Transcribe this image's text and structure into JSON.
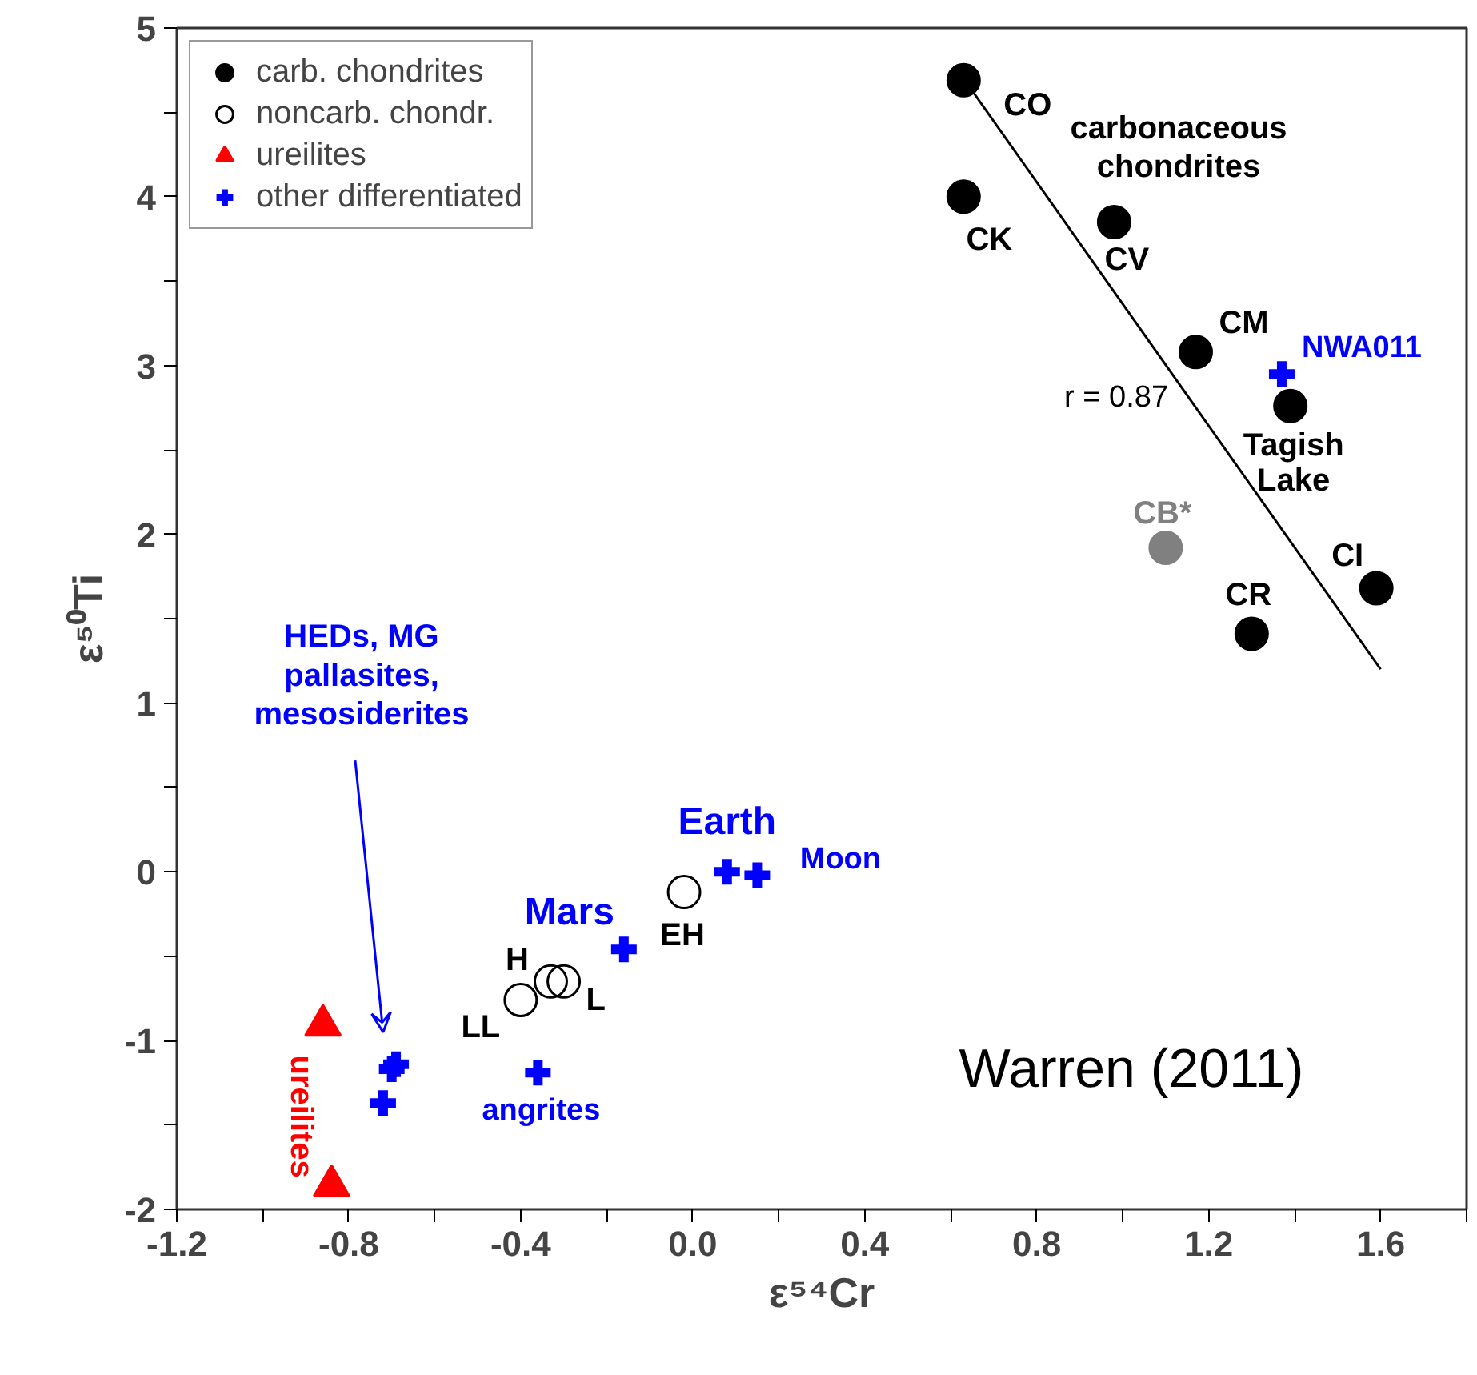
{
  "chart_data": {
    "type": "scatter",
    "xlabel": "ε⁵⁴Cr",
    "ylabel": "ε⁵⁰Ti",
    "xlim": [
      -1.2,
      1.8
    ],
    "ylim": [
      -2,
      5
    ],
    "xticks": [
      -1.2,
      {
        "value": -1.0,
        "label": null
      },
      -0.8,
      {
        "value": -0.6,
        "label": null
      },
      -0.4,
      {
        "value": -0.2,
        "label": null
      },
      {
        "value": 0,
        "label": "0.0"
      },
      {
        "value": 0.2,
        "label": null
      },
      0.4,
      {
        "value": 0.6,
        "label": null
      },
      0.8,
      {
        "value": 1.0,
        "label": null
      },
      1.2,
      {
        "value": 1.4,
        "label": null
      },
      1.6,
      {
        "value": 1.8,
        "label": null
      }
    ],
    "yticks": [
      -2,
      {
        "value": -1.5,
        "label": null
      },
      -1,
      {
        "value": -0.5,
        "label": null
      },
      0,
      {
        "value": 0.5,
        "label": null
      },
      1,
      {
        "value": 1.5,
        "label": null
      },
      2,
      {
        "value": 2.5,
        "label": null
      },
      3,
      {
        "value": 3.5,
        "label": null
      },
      4,
      {
        "value": 4.5,
        "label": null
      },
      5
    ],
    "grid": false,
    "legend": "top left",
    "series": [
      {
        "name": "carb. chondrites",
        "marker": "circle",
        "color": "#000000",
        "colors": [
          "#000000",
          "#000000",
          "#000000",
          "#000000",
          "#000000",
          "#000000",
          "#000000",
          "#808080"
        ],
        "x": [
          0.63,
          0.63,
          0.98,
          1.17,
          1.39,
          1.59,
          1.3,
          1.1
        ],
        "values": [
          4.69,
          4.0,
          3.85,
          3.08,
          2.76,
          1.68,
          1.41,
          1.92
        ],
        "value_labels": [
          "CO",
          "CK",
          "CV",
          "CM",
          "Tagish\nLake",
          "CI",
          "CR",
          "CB*"
        ]
      },
      {
        "name": "noncarb. chondr.",
        "marker": "circle",
        "color": "#000000",
        "x": [
          -0.02,
          -0.4,
          -0.33,
          -0.3
        ],
        "values": [
          -0.12,
          -0.76,
          -0.65,
          -0.65
        ],
        "value_labels": [
          "EH",
          "LL",
          "H",
          "L"
        ]
      },
      {
        "name": "ureilites",
        "marker": "triangle",
        "color": "#ff0000",
        "x": [
          -0.86,
          -0.84
        ],
        "values": [
          -0.91,
          -1.86
        ],
        "value_labels": [
          "ureilites",
          null
        ]
      },
      {
        "name": "other differentiated",
        "marker": "cross",
        "color": "#0000ff",
        "x": [
          1.37,
          0.08,
          0.15,
          -0.16,
          -0.36,
          -0.69,
          -0.7,
          -0.72
        ],
        "values": [
          2.95,
          0.0,
          -0.02,
          -0.46,
          -1.19,
          -1.14,
          -1.17,
          -1.37
        ],
        "value_labels": [
          "NWA011",
          "Earth",
          "Moon",
          "Mars",
          "angrites",
          null,
          null,
          null
        ]
      },
      {
        "type": "line",
        "color": "#000000",
        "x": [
          0.63,
          1.6
        ],
        "values": [
          4.7,
          1.2
        ]
      }
    ],
    "annotations": [
      "HEDs, MG\npallasites,\nmesosiderites",
      "carbonaceous\nchondrites",
      "r = 0.87",
      "Warren (2011)"
    ]
  }
}
